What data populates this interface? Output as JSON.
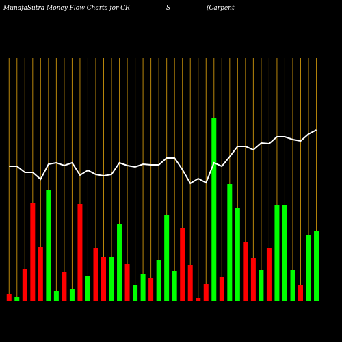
{
  "chart_data": {
    "type": "bar-line",
    "title_parts": [
      "MunafaSutra  Money Flow  Charts for CR",
      "S",
      "(Carpent"
    ],
    "grid": true,
    "grid_color": "#b8860b",
    "line_color": "#ffffff",
    "ylim": [
      0,
      440
    ],
    "series": [
      {
        "name": "money-flow",
        "values": [
          10,
          6,
          47,
          143,
          79,
          162,
          14,
          42,
          17,
          142,
          36,
          77,
          64,
          65,
          113,
          54,
          24,
          40,
          33,
          60,
          125,
          44,
          107,
          52,
          5,
          25,
          267,
          35,
          171,
          136,
          86,
          63,
          45,
          78,
          141,
          141,
          45,
          23,
          96,
          103
        ],
        "colors": [
          "#ff0000",
          "#00ff00",
          "#ff0000",
          "#ff0000",
          "#ff0000",
          "#00ff00",
          "#00ff00",
          "#ff0000",
          "#00ff00",
          "#ff0000",
          "#00ff00",
          "#ff0000",
          "#ff0000",
          "#00ff00",
          "#00ff00",
          "#ff0000",
          "#00ff00",
          "#00ff00",
          "#ff0000",
          "#00ff00",
          "#00ff00",
          "#00ff00",
          "#ff0000",
          "#ff0000",
          "#ff0000",
          "#ff0000",
          "#00ff00",
          "#ff0000",
          "#00ff00",
          "#00ff00",
          "#ff0000",
          "#ff0000",
          "#00ff00",
          "#ff0000",
          "#00ff00",
          "#00ff00",
          "#00ff00",
          "#ff0000",
          "#00ff00",
          "#00ff00"
        ]
      },
      {
        "name": "price",
        "values": [
          197,
          197,
          188,
          188,
          178,
          200,
          202,
          198,
          202,
          184,
          191,
          185,
          183,
          185,
          202,
          198,
          196,
          200,
          199,
          199,
          209,
          209,
          192,
          172,
          179,
          173,
          202,
          197,
          211,
          226,
          226,
          221,
          231,
          230,
          240,
          240,
          236,
          234,
          244,
          250
        ]
      }
    ]
  }
}
